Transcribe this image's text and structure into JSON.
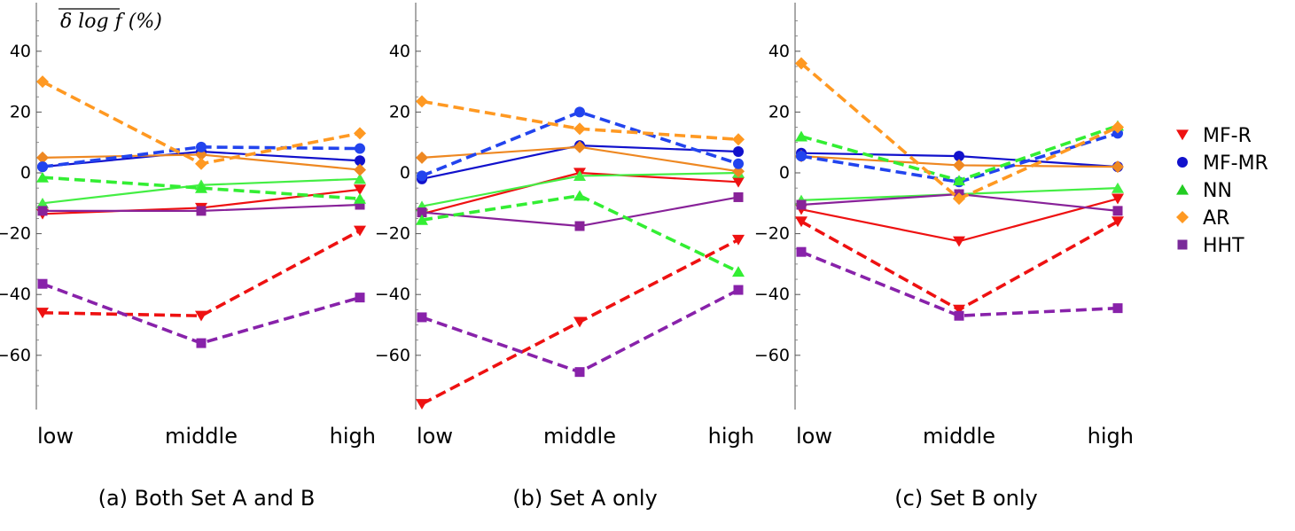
{
  "chart_data": [
    {
      "type": "line",
      "caption": "(a) Both Set A and B",
      "ylabel": "δ log f (%)",
      "categories": [
        "low",
        "middle",
        "high"
      ],
      "yticks": [
        40,
        20,
        0,
        -20,
        -40,
        -60
      ],
      "ylim": [
        -77,
        56
      ],
      "series": [
        {
          "name": "MF-R",
          "style": "solid",
          "values": [
            -13.5,
            -11.5,
            -5.5
          ]
        },
        {
          "name": "MF-R",
          "style": "dashed",
          "values": [
            -46,
            -47,
            -19
          ]
        },
        {
          "name": "MF-MR",
          "style": "solid",
          "values": [
            2,
            7,
            4
          ]
        },
        {
          "name": "MF-MR",
          "style": "dashed",
          "values": [
            2,
            8.5,
            8
          ]
        },
        {
          "name": "NN",
          "style": "solid",
          "values": [
            -10,
            -4,
            -2
          ]
        },
        {
          "name": "NN",
          "style": "dashed",
          "values": [
            -1.5,
            -5,
            -8.5
          ]
        },
        {
          "name": "AR",
          "style": "solid",
          "values": [
            5,
            6,
            1
          ]
        },
        {
          "name": "AR",
          "style": "dashed",
          "values": [
            30,
            3,
            13
          ]
        },
        {
          "name": "HHT",
          "style": "solid",
          "values": [
            -12.5,
            -12.5,
            -10.5
          ]
        },
        {
          "name": "HHT",
          "style": "dashed",
          "values": [
            -36.5,
            -56,
            -41
          ]
        }
      ]
    },
    {
      "type": "line",
      "caption": "(b) Set A only",
      "categories": [
        "low",
        "middle",
        "high"
      ],
      "yticks": [
        40,
        20,
        0,
        -20,
        -40,
        -60
      ],
      "ylim": [
        -77,
        56
      ],
      "series": [
        {
          "name": "MF-R",
          "style": "solid",
          "values": [
            -13.5,
            0,
            -3
          ]
        },
        {
          "name": "MF-R",
          "style": "dashed",
          "values": [
            -76,
            -49,
            -22
          ]
        },
        {
          "name": "MF-MR",
          "style": "solid",
          "values": [
            -2,
            9,
            7
          ]
        },
        {
          "name": "MF-MR",
          "style": "dashed",
          "values": [
            -1,
            20,
            3
          ]
        },
        {
          "name": "NN",
          "style": "solid",
          "values": [
            -11,
            -1,
            0
          ]
        },
        {
          "name": "NN",
          "style": "dashed",
          "values": [
            -15.5,
            -7.5,
            -32.5
          ]
        },
        {
          "name": "AR",
          "style": "solid",
          "values": [
            5,
            8.5,
            0.5
          ]
        },
        {
          "name": "AR",
          "style": "dashed",
          "values": [
            23.5,
            14.5,
            11
          ]
        },
        {
          "name": "HHT",
          "style": "solid",
          "values": [
            -13,
            -17.5,
            -8
          ]
        },
        {
          "name": "HHT",
          "style": "dashed",
          "values": [
            -47.5,
            -65.5,
            -38.5
          ]
        }
      ]
    },
    {
      "type": "line",
      "caption": "(c) Set B only",
      "categories": [
        "low",
        "middle",
        "high"
      ],
      "yticks": [
        40,
        20,
        0,
        -20,
        -40,
        -60
      ],
      "ylim": [
        -77,
        56
      ],
      "series": [
        {
          "name": "MF-R",
          "style": "solid",
          "values": [
            -12,
            -22.5,
            -8.5
          ]
        },
        {
          "name": "MF-R",
          "style": "dashed",
          "values": [
            -16,
            -45,
            -16
          ]
        },
        {
          "name": "MF-MR",
          "style": "solid",
          "values": [
            6.5,
            5.5,
            2
          ]
        },
        {
          "name": "MF-MR",
          "style": "dashed",
          "values": [
            5.5,
            -3,
            13
          ]
        },
        {
          "name": "NN",
          "style": "solid",
          "values": [
            -9,
            -7,
            -5
          ]
        },
        {
          "name": "NN",
          "style": "dashed",
          "values": [
            12,
            -2.5,
            15.5
          ]
        },
        {
          "name": "AR",
          "style": "solid",
          "values": [
            5.5,
            2.5,
            2
          ]
        },
        {
          "name": "AR",
          "style": "dashed",
          "values": [
            36,
            -8.5,
            15
          ]
        },
        {
          "name": "HHT",
          "style": "solid",
          "values": [
            -10.5,
            -7,
            -12.5
          ]
        },
        {
          "name": "HHT",
          "style": "dashed",
          "values": [
            -26,
            -47,
            -44.5
          ]
        }
      ]
    }
  ],
  "legend": [
    {
      "name": "MF-R",
      "color": "#ee1111",
      "marker": "triangle-down"
    },
    {
      "name": "MF-MR",
      "color": "#1111cc",
      "marker": "circle"
    },
    {
      "name": "NN",
      "color": "#22cc22",
      "marker": "triangle-up"
    },
    {
      "name": "AR",
      "color": "#ff9922",
      "marker": "diamond"
    },
    {
      "name": "HHT",
      "color": "#7a2a9a",
      "marker": "square"
    }
  ],
  "series_colors": {
    "MF-R": {
      "solid": "#ee1111",
      "dashed": "#ee1111"
    },
    "MF-MR": {
      "solid": "#1111cc",
      "dashed": "#2244ee"
    },
    "NN": {
      "solid": "#44ee44",
      "dashed": "#33ee33"
    },
    "AR": {
      "solid": "#ee8822",
      "dashed": "#ff9922"
    },
    "HHT": {
      "solid": "#882299",
      "dashed": "#8822aa"
    }
  }
}
